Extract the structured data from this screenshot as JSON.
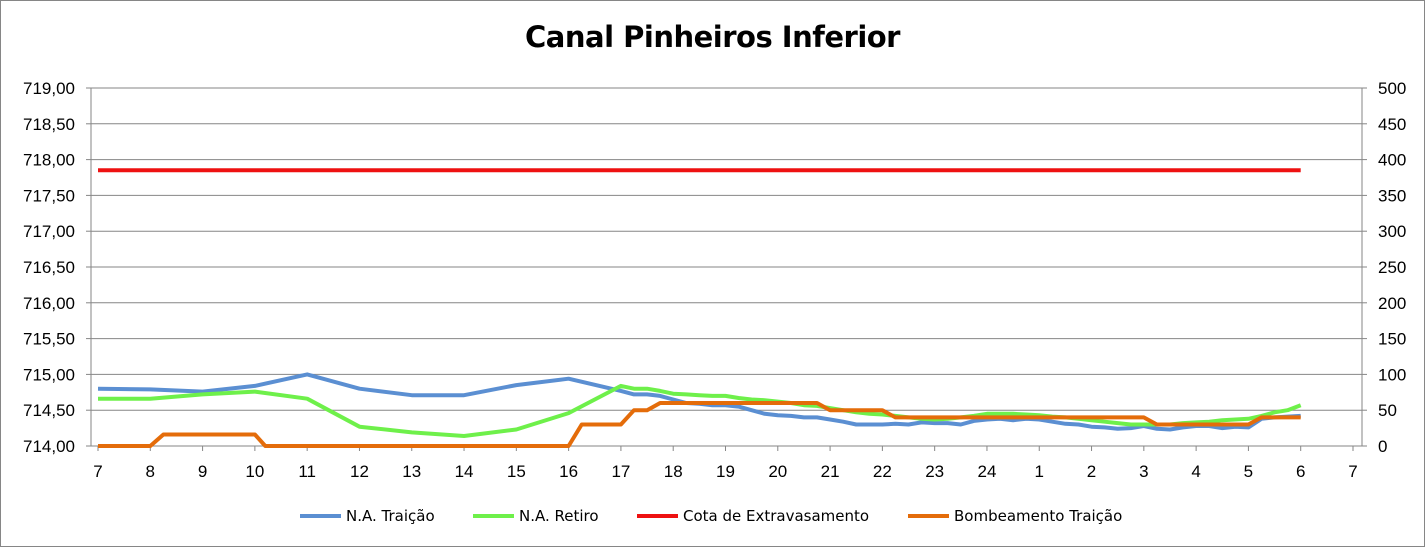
{
  "chart_data": {
    "type": "line",
    "title": "Canal Pinheiros Inferior",
    "x_ticks": [
      "7",
      "8",
      "9",
      "10",
      "11",
      "12",
      "13",
      "14",
      "15",
      "16",
      "17",
      "18",
      "19",
      "20",
      "21",
      "22",
      "23",
      "24",
      "1",
      "2",
      "3",
      "4",
      "5",
      "6",
      "7"
    ],
    "y_left": {
      "min": 714.0,
      "max": 719.0,
      "step": 0.5,
      "tick_labels": [
        "714,00",
        "714,50",
        "715,00",
        "715,50",
        "716,00",
        "716,50",
        "717,00",
        "717,50",
        "718,00",
        "718,50",
        "719,00"
      ]
    },
    "y_right": {
      "min": 0,
      "max": 500,
      "step": 50,
      "tick_labels": [
        "0",
        "50",
        "100",
        "150",
        "200",
        "250",
        "300",
        "350",
        "400",
        "450",
        "500"
      ]
    },
    "grid": "horizontal",
    "legend_position": "bottom",
    "series": [
      {
        "name": "N.A. Traição",
        "axis": "left",
        "color": "#5b8fd2",
        "points": [
          [
            0,
            714.8
          ],
          [
            1,
            714.79
          ],
          [
            2,
            714.76
          ],
          [
            3,
            714.84
          ],
          [
            4,
            715.0
          ],
          [
            5,
            714.8
          ],
          [
            6,
            714.71
          ],
          [
            7,
            714.71
          ],
          [
            8,
            714.85
          ],
          [
            9,
            714.94
          ],
          [
            10,
            714.77
          ],
          [
            10.25,
            714.72
          ],
          [
            10.5,
            714.72
          ],
          [
            10.75,
            714.7
          ],
          [
            11,
            714.65
          ],
          [
            11.25,
            714.6
          ],
          [
            11.5,
            714.59
          ],
          [
            11.75,
            714.57
          ],
          [
            12,
            714.57
          ],
          [
            12.25,
            714.55
          ],
          [
            12.5,
            714.5
          ],
          [
            12.75,
            714.45
          ],
          [
            13,
            714.43
          ],
          [
            13.25,
            714.42
          ],
          [
            13.5,
            714.4
          ],
          [
            13.75,
            714.4
          ],
          [
            14,
            714.37
          ],
          [
            14.25,
            714.34
          ],
          [
            14.5,
            714.3
          ],
          [
            14.75,
            714.3
          ],
          [
            15,
            714.3
          ],
          [
            15.25,
            714.31
          ],
          [
            15.5,
            714.3
          ],
          [
            15.75,
            714.33
          ],
          [
            16,
            714.32
          ],
          [
            16.25,
            714.32
          ],
          [
            16.5,
            714.3
          ],
          [
            16.75,
            714.35
          ],
          [
            17,
            714.37
          ],
          [
            17.25,
            714.38
          ],
          [
            17.5,
            714.36
          ],
          [
            17.75,
            714.38
          ],
          [
            18,
            714.37
          ],
          [
            18.25,
            714.34
          ],
          [
            18.5,
            714.31
          ],
          [
            18.75,
            714.3
          ],
          [
            19,
            714.27
          ],
          [
            19.25,
            714.26
          ],
          [
            19.5,
            714.24
          ],
          [
            19.75,
            714.25
          ],
          [
            20,
            714.28
          ],
          [
            20.25,
            714.24
          ],
          [
            20.5,
            714.23
          ],
          [
            20.75,
            714.26
          ],
          [
            21,
            714.28
          ],
          [
            21.25,
            714.28
          ],
          [
            21.5,
            714.25
          ],
          [
            21.75,
            714.27
          ],
          [
            22,
            714.26
          ],
          [
            22.25,
            714.38
          ],
          [
            22.5,
            714.4
          ],
          [
            22.75,
            714.41
          ],
          [
            23,
            714.42
          ]
        ]
      },
      {
        "name": "N.A. Retiro",
        "axis": "left",
        "color": "#6ef04a",
        "points": [
          [
            0,
            714.66
          ],
          [
            1,
            714.66
          ],
          [
            2,
            714.72
          ],
          [
            3,
            714.76
          ],
          [
            4,
            714.66
          ],
          [
            5,
            714.27
          ],
          [
            6,
            714.19
          ],
          [
            7,
            714.14
          ],
          [
            8,
            714.23
          ],
          [
            9,
            714.46
          ],
          [
            10,
            714.84
          ],
          [
            10.25,
            714.8
          ],
          [
            10.5,
            714.8
          ],
          [
            10.75,
            714.77
          ],
          [
            11,
            714.73
          ],
          [
            11.25,
            714.72
          ],
          [
            11.5,
            714.71
          ],
          [
            11.75,
            714.7
          ],
          [
            12,
            714.7
          ],
          [
            12.25,
            714.67
          ],
          [
            12.5,
            714.65
          ],
          [
            12.75,
            714.64
          ],
          [
            13,
            714.62
          ],
          [
            13.25,
            714.6
          ],
          [
            13.5,
            714.57
          ],
          [
            13.75,
            714.56
          ],
          [
            14,
            714.53
          ],
          [
            14.25,
            714.5
          ],
          [
            14.5,
            714.47
          ],
          [
            14.75,
            714.45
          ],
          [
            15,
            714.44
          ],
          [
            15.25,
            714.42
          ],
          [
            15.5,
            714.4
          ],
          [
            15.75,
            714.38
          ],
          [
            16,
            714.37
          ],
          [
            16.25,
            714.38
          ],
          [
            16.5,
            714.4
          ],
          [
            16.75,
            714.42
          ],
          [
            17,
            714.45
          ],
          [
            17.25,
            714.45
          ],
          [
            17.5,
            714.45
          ],
          [
            17.75,
            714.44
          ],
          [
            18,
            714.43
          ],
          [
            18.25,
            714.41
          ],
          [
            18.5,
            714.4
          ],
          [
            18.75,
            714.38
          ],
          [
            19,
            714.36
          ],
          [
            19.25,
            714.34
          ],
          [
            19.5,
            714.32
          ],
          [
            19.75,
            714.3
          ],
          [
            20,
            714.3
          ],
          [
            20.25,
            714.3
          ],
          [
            20.5,
            714.3
          ],
          [
            20.75,
            714.32
          ],
          [
            21,
            714.33
          ],
          [
            21.25,
            714.34
          ],
          [
            21.5,
            714.36
          ],
          [
            21.75,
            714.37
          ],
          [
            22,
            714.38
          ],
          [
            22.25,
            714.42
          ],
          [
            22.5,
            714.47
          ],
          [
            22.75,
            714.5
          ],
          [
            23,
            714.57
          ]
        ]
      },
      {
        "name": "Cota de Extravasamento",
        "axis": "left",
        "color": "#ee1111",
        "points": [
          [
            0,
            717.85
          ],
          [
            23,
            717.85
          ]
        ]
      },
      {
        "name": "Bombeamento Traição",
        "axis": "right",
        "color": "#e46c0a",
        "points": [
          [
            0,
            0
          ],
          [
            1,
            0
          ],
          [
            1.25,
            16
          ],
          [
            2,
            16
          ],
          [
            3,
            16
          ],
          [
            3.2,
            0
          ],
          [
            4,
            0
          ],
          [
            5,
            0
          ],
          [
            6,
            0
          ],
          [
            7,
            0
          ],
          [
            8,
            0
          ],
          [
            9,
            0
          ],
          [
            9.25,
            30
          ],
          [
            10,
            30
          ],
          [
            10.25,
            50
          ],
          [
            10.5,
            50
          ],
          [
            10.75,
            60
          ],
          [
            11,
            60
          ],
          [
            12,
            60
          ],
          [
            13,
            60
          ],
          [
            13.75,
            60
          ],
          [
            14,
            50
          ],
          [
            14.5,
            50
          ],
          [
            15,
            50
          ],
          [
            15.25,
            40
          ],
          [
            16,
            40
          ],
          [
            17,
            40
          ],
          [
            18,
            40
          ],
          [
            19,
            40
          ],
          [
            20,
            40
          ],
          [
            20.25,
            30
          ],
          [
            21,
            30
          ],
          [
            22,
            30
          ],
          [
            22.25,
            40
          ],
          [
            23,
            40
          ]
        ]
      }
    ]
  }
}
